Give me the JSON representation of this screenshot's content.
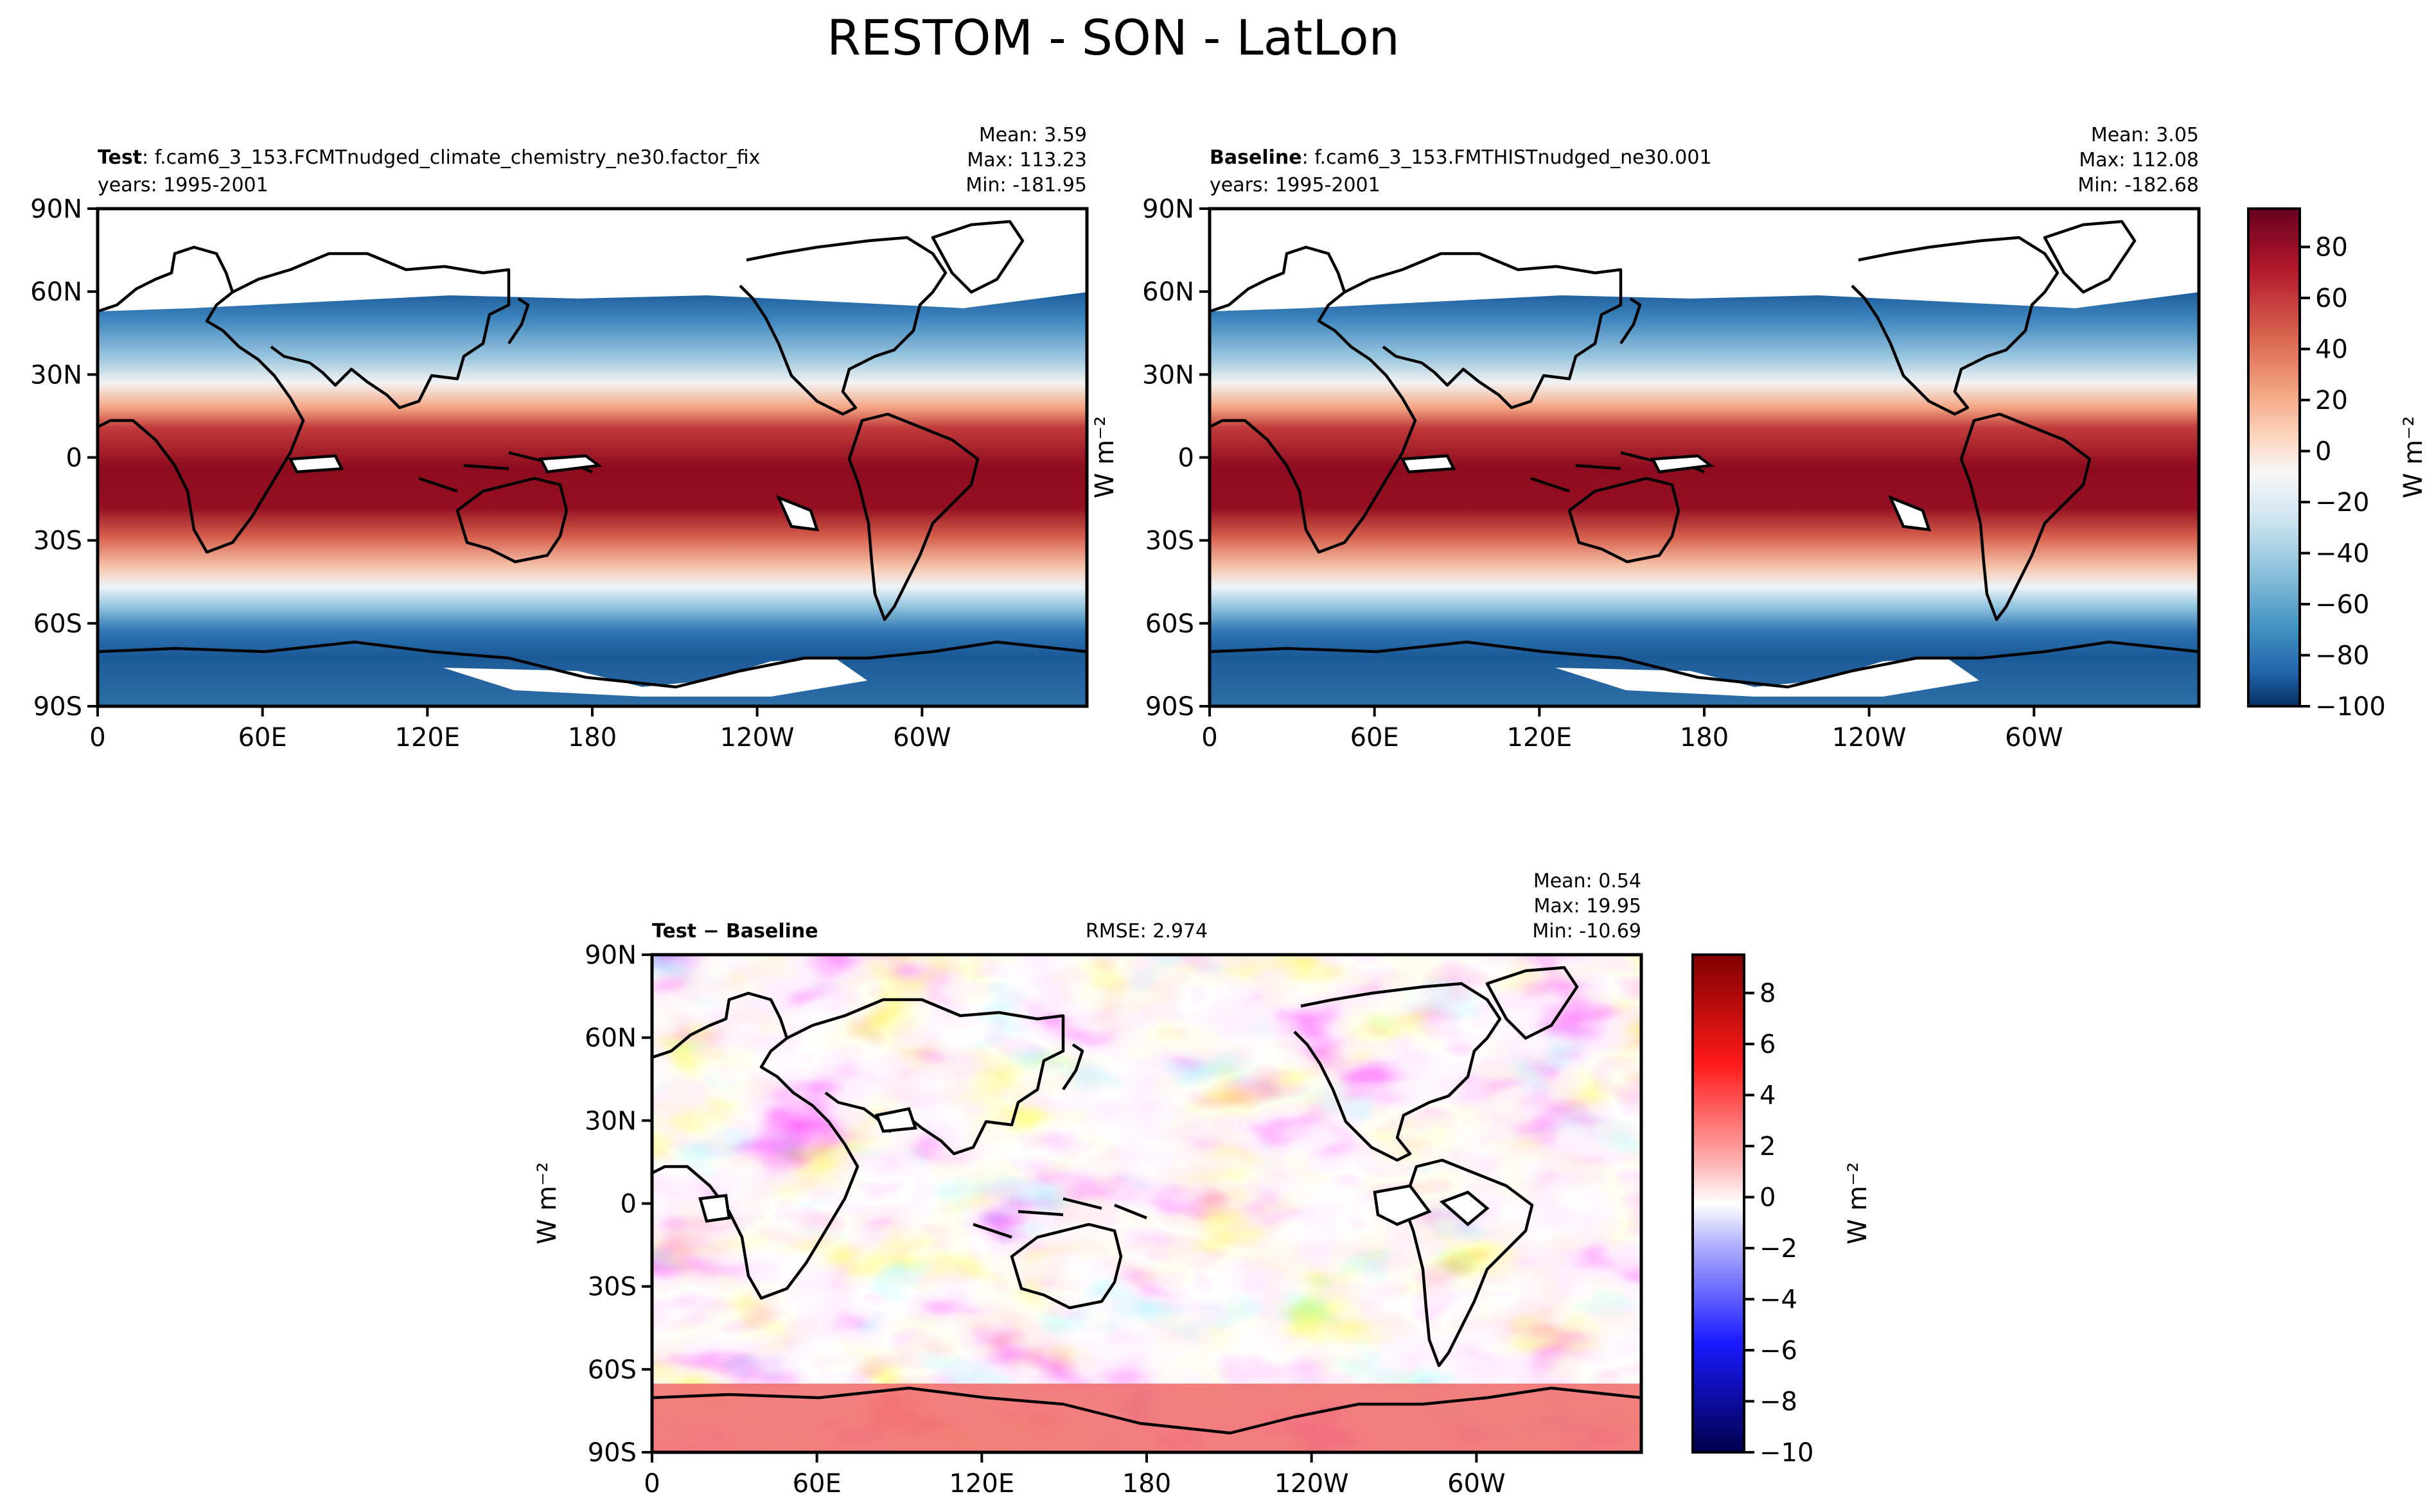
{
  "figure_title": "RESTOM - SON - LatLon",
  "chart_data": [
    {
      "type": "heatmap",
      "panel": "test",
      "label_bold": "Test",
      "label_sep": ":",
      "case_name": "f.cam6_3_153.FCMTnudged_climate_chemistry_ne30.factor_fix",
      "years": "years: 1995-2001",
      "stats": {
        "mean": "Mean:  3.59",
        "max": "Max: 113.23",
        "min": "Min: -181.95"
      },
      "xticks": [
        "0",
        "60E",
        "120E",
        "180",
        "120W",
        "60W"
      ],
      "yticks": [
        "90N",
        "60N",
        "30N",
        "0",
        "30S",
        "60S",
        "90S"
      ],
      "xlim": [
        0,
        360
      ],
      "ylim": [
        -90,
        90
      ],
      "units": "W m⁻²",
      "colormap": "RdBu_r"
    },
    {
      "type": "heatmap",
      "panel": "baseline",
      "label_bold": "Baseline",
      "label_sep": ":",
      "case_name": "f.cam6_3_153.FMTHISTnudged_ne30.001",
      "years": "years: 1995-2001",
      "stats": {
        "mean": "Mean:  3.05",
        "max": "Max: 112.08",
        "min": "Min: -182.68"
      },
      "xticks": [
        "0",
        "60E",
        "120E",
        "180",
        "120W",
        "60W"
      ],
      "yticks": [
        "90N",
        "60N",
        "30N",
        "0",
        "30S",
        "60S",
        "90S"
      ],
      "xlim": [
        0,
        360
      ],
      "ylim": [
        -90,
        90
      ],
      "units": "W m⁻²",
      "colormap": "RdBu_r",
      "colorbar": {
        "ticks": [
          "80",
          "60",
          "40",
          "20",
          "0",
          "−20",
          "−40",
          "−60",
          "−80",
          "−100"
        ],
        "range": [
          -100,
          95
        ],
        "label": "W m⁻²"
      }
    },
    {
      "type": "heatmap",
      "panel": "difference",
      "label_bold": "Test − Baseline",
      "rmse": "RMSE: 2.974",
      "stats": {
        "mean": "Mean:  0.54",
        "max": "Max: 19.95",
        "min": "Min: -10.69"
      },
      "xticks": [
        "0",
        "60E",
        "120E",
        "180",
        "120W",
        "60W"
      ],
      "yticks": [
        "90N",
        "60N",
        "30N",
        "0",
        "30S",
        "60S",
        "90S"
      ],
      "xlim": [
        0,
        360
      ],
      "ylim": [
        -90,
        90
      ],
      "units": "W m⁻²",
      "colormap": "seismic",
      "colorbar": {
        "ticks": [
          "8",
          "6",
          "4",
          "2",
          "0",
          "−2",
          "−4",
          "−6",
          "−8",
          "−10"
        ],
        "range": [
          -10,
          9.5
        ],
        "label": "W m⁻²"
      }
    }
  ]
}
